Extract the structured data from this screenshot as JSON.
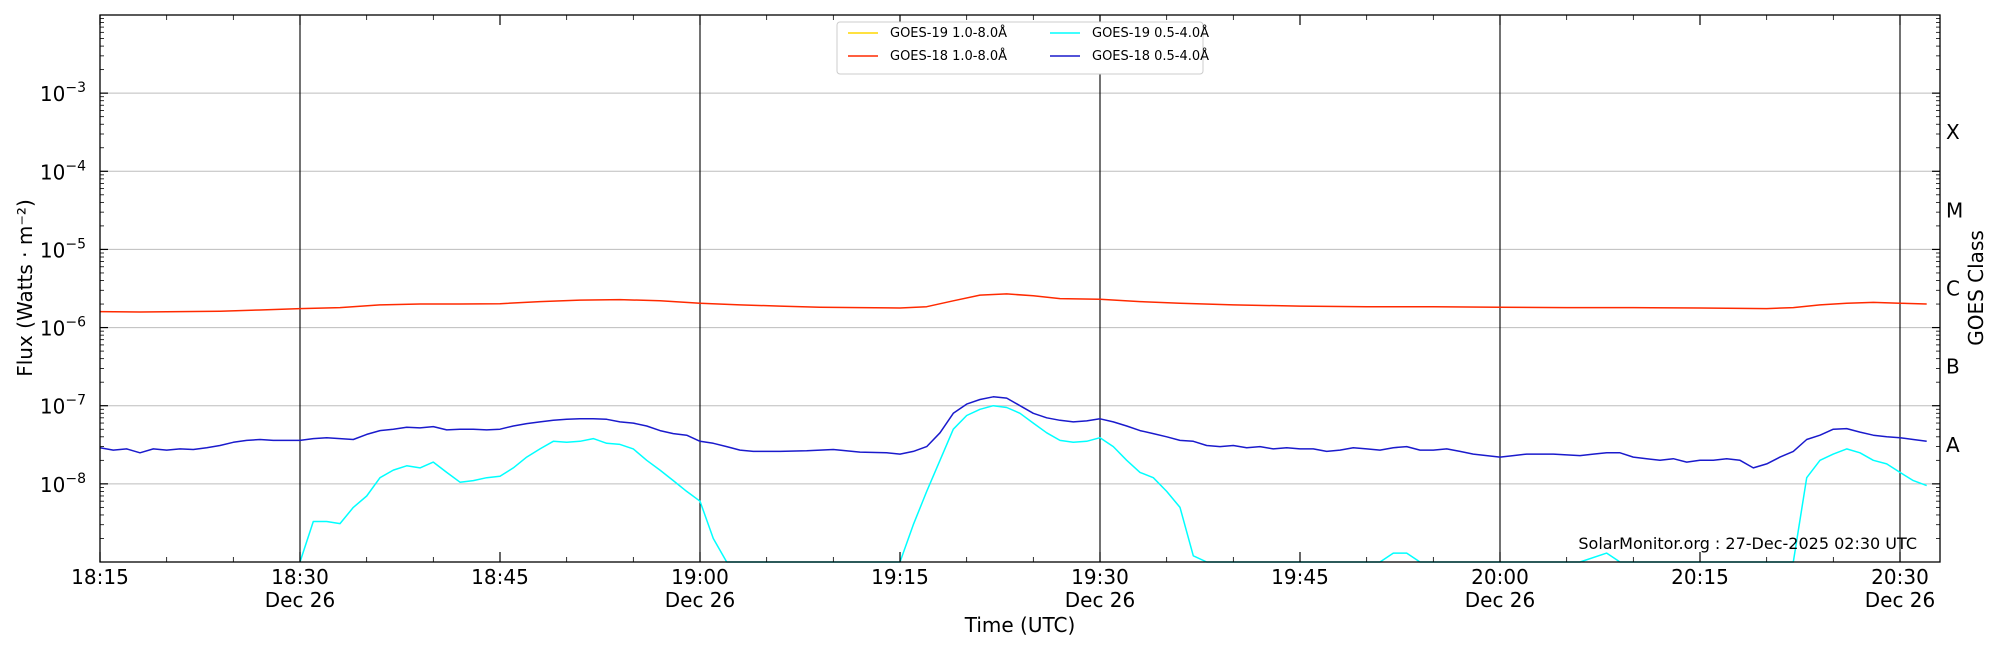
{
  "chart_data": {
    "type": "line",
    "xlabel": "Time (UTC)",
    "ylabel": "Flux (Watts · m⁻²)",
    "ylabel_right": "GOES Class",
    "y_scale": "log",
    "ylim": [
      1e-09,
      0.01
    ],
    "x_range": [
      "18:15",
      "20:33"
    ],
    "y_ticks": [
      {
        "value": 1e-08,
        "base": "10",
        "exp": "−8"
      },
      {
        "value": 1e-07,
        "base": "10",
        "exp": "−7"
      },
      {
        "value": 1e-06,
        "base": "10",
        "exp": "−6"
      },
      {
        "value": 1e-05,
        "base": "10",
        "exp": "−5"
      },
      {
        "value": 0.0001,
        "base": "10",
        "exp": "−4"
      },
      {
        "value": 0.001,
        "base": "10",
        "exp": "−3"
      }
    ],
    "x_ticks": [
      {
        "time": "18:15",
        "label": "18:15",
        "date": ""
      },
      {
        "time": "18:30",
        "label": "18:30",
        "date": "Dec 26"
      },
      {
        "time": "18:45",
        "label": "18:45",
        "date": ""
      },
      {
        "time": "19:00",
        "label": "19:00",
        "date": "Dec 26"
      },
      {
        "time": "19:15",
        "label": "19:15",
        "date": ""
      },
      {
        "time": "19:30",
        "label": "19:30",
        "date": "Dec 26"
      },
      {
        "time": "19:45",
        "label": "19:45",
        "date": ""
      },
      {
        "time": "20:00",
        "label": "20:00",
        "date": "Dec 26"
      },
      {
        "time": "20:15",
        "label": "20:15",
        "date": ""
      },
      {
        "time": "20:30",
        "label": "20:30",
        "date": "Dec 26"
      }
    ],
    "vertical_lines": [
      "18:30",
      "19:00",
      "19:30",
      "20:00",
      "20:30"
    ],
    "goes_classes": [
      {
        "label": "A",
        "value": 3.16e-08
      },
      {
        "label": "B",
        "value": 3.16e-07
      },
      {
        "label": "C",
        "value": 3.16e-06
      },
      {
        "label": "M",
        "value": 3.16e-05
      },
      {
        "label": "X",
        "value": 0.000316
      }
    ],
    "grid": true,
    "legend_position": "top-center",
    "watermark": "SolarMonitor.org : 27-Dec-2025 02:30 UTC",
    "series": [
      {
        "name": "GOES-19 1.0-8.0Å",
        "color": "#ffd700",
        "draw": false,
        "points": []
      },
      {
        "name": "GOES-18 1.0-8.0Å",
        "color": "#ff2a00",
        "points": [
          [
            "18:15",
            1.6e-06
          ],
          [
            "18:18",
            1.58e-06
          ],
          [
            "18:21",
            1.6e-06
          ],
          [
            "18:24",
            1.62e-06
          ],
          [
            "18:27",
            1.68e-06
          ],
          [
            "18:30",
            1.75e-06
          ],
          [
            "18:33",
            1.8e-06
          ],
          [
            "18:36",
            1.95e-06
          ],
          [
            "18:39",
            2e-06
          ],
          [
            "18:42",
            2e-06
          ],
          [
            "18:45",
            2.02e-06
          ],
          [
            "18:48",
            2.15e-06
          ],
          [
            "18:51",
            2.25e-06
          ],
          [
            "18:54",
            2.28e-06
          ],
          [
            "18:57",
            2.2e-06
          ],
          [
            "19:00",
            2.05e-06
          ],
          [
            "19:03",
            1.95e-06
          ],
          [
            "19:06",
            1.88e-06
          ],
          [
            "19:09",
            1.82e-06
          ],
          [
            "19:12",
            1.8e-06
          ],
          [
            "19:15",
            1.78e-06
          ],
          [
            "19:17",
            1.85e-06
          ],
          [
            "19:19",
            2.2e-06
          ],
          [
            "19:21",
            2.6e-06
          ],
          [
            "19:23",
            2.7e-06
          ],
          [
            "19:25",
            2.55e-06
          ],
          [
            "19:27",
            2.35e-06
          ],
          [
            "19:30",
            2.3e-06
          ],
          [
            "19:33",
            2.15e-06
          ],
          [
            "19:36",
            2.05e-06
          ],
          [
            "19:40",
            1.95e-06
          ],
          [
            "19:45",
            1.88e-06
          ],
          [
            "19:50",
            1.85e-06
          ],
          [
            "19:55",
            1.85e-06
          ],
          [
            "20:00",
            1.82e-06
          ],
          [
            "20:05",
            1.8e-06
          ],
          [
            "20:10",
            1.8e-06
          ],
          [
            "20:15",
            1.78e-06
          ],
          [
            "20:20",
            1.75e-06
          ],
          [
            "20:22",
            1.8e-06
          ],
          [
            "20:24",
            1.95e-06
          ],
          [
            "20:26",
            2.05e-06
          ],
          [
            "20:28",
            2.1e-06
          ],
          [
            "20:30",
            2.05e-06
          ],
          [
            "20:32",
            2e-06
          ]
        ]
      },
      {
        "name": "GOES-19 0.5-4.0Å",
        "color": "#00ffff",
        "points": [
          [
            "18:30",
            1e-09
          ],
          [
            "18:31",
            3.3e-09
          ],
          [
            "18:32",
            3.3e-09
          ],
          [
            "18:33",
            3.1e-09
          ],
          [
            "18:34",
            5e-09
          ],
          [
            "18:35",
            7e-09
          ],
          [
            "18:36",
            1.2e-08
          ],
          [
            "18:37",
            1.5e-08
          ],
          [
            "18:38",
            1.7e-08
          ],
          [
            "18:39",
            1.6e-08
          ],
          [
            "18:40",
            1.9e-08
          ],
          [
            "18:41",
            1.4e-08
          ],
          [
            "18:42",
            1.05e-08
          ],
          [
            "18:43",
            1.1e-08
          ],
          [
            "18:44",
            1.2e-08
          ],
          [
            "18:45",
            1.25e-08
          ],
          [
            "18:46",
            1.6e-08
          ],
          [
            "18:47",
            2.2e-08
          ],
          [
            "18:48",
            2.8e-08
          ],
          [
            "18:49",
            3.5e-08
          ],
          [
            "18:50",
            3.4e-08
          ],
          [
            "18:51",
            3.5e-08
          ],
          [
            "18:52",
            3.8e-08
          ],
          [
            "18:53",
            3.3e-08
          ],
          [
            "18:54",
            3.2e-08
          ],
          [
            "18:55",
            2.8e-08
          ],
          [
            "18:56",
            2e-08
          ],
          [
            "18:57",
            1.5e-08
          ],
          [
            "18:58",
            1.1e-08
          ],
          [
            "18:59",
            8e-09
          ],
          [
            "19:00",
            6e-09
          ],
          [
            "19:01",
            2e-09
          ],
          [
            "19:02",
            1e-09
          ],
          [
            "19:15",
            1e-09
          ],
          [
            "19:16",
            3e-09
          ],
          [
            "19:17",
            8e-09
          ],
          [
            "19:18",
            2e-08
          ],
          [
            "19:19",
            5e-08
          ],
          [
            "19:20",
            7.5e-08
          ],
          [
            "19:21",
            9e-08
          ],
          [
            "19:22",
            1e-07
          ],
          [
            "19:23",
            9.5e-08
          ],
          [
            "19:24",
            8e-08
          ],
          [
            "19:25",
            6e-08
          ],
          [
            "19:26",
            4.5e-08
          ],
          [
            "19:27",
            3.6e-08
          ],
          [
            "19:28",
            3.4e-08
          ],
          [
            "19:29",
            3.5e-08
          ],
          [
            "19:30",
            3.9e-08
          ],
          [
            "19:31",
            3e-08
          ],
          [
            "19:32",
            2e-08
          ],
          [
            "19:33",
            1.4e-08
          ],
          [
            "19:34",
            1.2e-08
          ],
          [
            "19:35",
            8e-09
          ],
          [
            "19:36",
            5e-09
          ],
          [
            "19:37",
            1.2e-09
          ],
          [
            "19:38",
            1e-09
          ],
          [
            "19:51",
            1e-09
          ],
          [
            "19:52",
            1.3e-09
          ],
          [
            "19:53",
            1.3e-09
          ],
          [
            "19:54",
            1e-09
          ],
          [
            "20:06",
            1e-09
          ],
          [
            "20:08",
            1.3e-09
          ],
          [
            "20:09",
            1e-09
          ],
          [
            "20:22",
            1e-09
          ],
          [
            "20:23",
            1.2e-08
          ],
          [
            "20:24",
            2e-08
          ],
          [
            "20:25",
            2.4e-08
          ],
          [
            "20:26",
            2.8e-08
          ],
          [
            "20:27",
            2.5e-08
          ],
          [
            "20:28",
            2e-08
          ],
          [
            "20:29",
            1.8e-08
          ],
          [
            "20:30",
            1.4e-08
          ],
          [
            "20:31",
            1.1e-08
          ],
          [
            "20:32",
            9.5e-09
          ]
        ]
      },
      {
        "name": "GOES-18 0.5-4.0Å",
        "color": "#1a1acc",
        "points": [
          [
            "18:15",
            2.9e-08
          ],
          [
            "18:16",
            2.7e-08
          ],
          [
            "18:17",
            2.8e-08
          ],
          [
            "18:18",
            2.5e-08
          ],
          [
            "18:19",
            2.8e-08
          ],
          [
            "18:20",
            2.7e-08
          ],
          [
            "18:21",
            2.8e-08
          ],
          [
            "18:22",
            2.75e-08
          ],
          [
            "18:23",
            2.9e-08
          ],
          [
            "18:24",
            3.1e-08
          ],
          [
            "18:25",
            3.4e-08
          ],
          [
            "18:26",
            3.6e-08
          ],
          [
            "18:27",
            3.7e-08
          ],
          [
            "18:28",
            3.6e-08
          ],
          [
            "18:30",
            3.6e-08
          ],
          [
            "18:31",
            3.8e-08
          ],
          [
            "18:32",
            3.9e-08
          ],
          [
            "18:33",
            3.8e-08
          ],
          [
            "18:34",
            3.7e-08
          ],
          [
            "18:35",
            4.3e-08
          ],
          [
            "18:36",
            4.8e-08
          ],
          [
            "18:37",
            5e-08
          ],
          [
            "18:38",
            5.3e-08
          ],
          [
            "18:39",
            5.2e-08
          ],
          [
            "18:40",
            5.4e-08
          ],
          [
            "18:41",
            4.9e-08
          ],
          [
            "18:42",
            5e-08
          ],
          [
            "18:43",
            5e-08
          ],
          [
            "18:44",
            4.9e-08
          ],
          [
            "18:45",
            5e-08
          ],
          [
            "18:46",
            5.5e-08
          ],
          [
            "18:47",
            5.9e-08
          ],
          [
            "18:48",
            6.2e-08
          ],
          [
            "18:49",
            6.5e-08
          ],
          [
            "18:50",
            6.7e-08
          ],
          [
            "18:51",
            6.8e-08
          ],
          [
            "18:52",
            6.8e-08
          ],
          [
            "18:53",
            6.7e-08
          ],
          [
            "18:54",
            6.2e-08
          ],
          [
            "18:55",
            6e-08
          ],
          [
            "18:56",
            5.5e-08
          ],
          [
            "18:57",
            4.8e-08
          ],
          [
            "18:58",
            4.4e-08
          ],
          [
            "18:59",
            4.2e-08
          ],
          [
            "19:00",
            3.5e-08
          ],
          [
            "19:01",
            3.3e-08
          ],
          [
            "19:02",
            3e-08
          ],
          [
            "19:03",
            2.7e-08
          ],
          [
            "19:04",
            2.6e-08
          ],
          [
            "19:06",
            2.6e-08
          ],
          [
            "19:08",
            2.65e-08
          ],
          [
            "19:10",
            2.75e-08
          ],
          [
            "19:12",
            2.55e-08
          ],
          [
            "19:14",
            2.5e-08
          ],
          [
            "19:15",
            2.4e-08
          ],
          [
            "19:16",
            2.6e-08
          ],
          [
            "19:17",
            3e-08
          ],
          [
            "19:18",
            4.5e-08
          ],
          [
            "19:19",
            8e-08
          ],
          [
            "19:20",
            1.05e-07
          ],
          [
            "19:21",
            1.2e-07
          ],
          [
            "19:22",
            1.3e-07
          ],
          [
            "19:23",
            1.25e-07
          ],
          [
            "19:24",
            1e-07
          ],
          [
            "19:25",
            8e-08
          ],
          [
            "19:26",
            7e-08
          ],
          [
            "19:27",
            6.5e-08
          ],
          [
            "19:28",
            6.2e-08
          ],
          [
            "19:29",
            6.4e-08
          ],
          [
            "19:30",
            6.8e-08
          ],
          [
            "19:31",
            6.2e-08
          ],
          [
            "19:32",
            5.5e-08
          ],
          [
            "19:33",
            4.8e-08
          ],
          [
            "19:34",
            4.4e-08
          ],
          [
            "19:35",
            4e-08
          ],
          [
            "19:36",
            3.6e-08
          ],
          [
            "19:37",
            3.5e-08
          ],
          [
            "19:38",
            3.1e-08
          ],
          [
            "19:39",
            3e-08
          ],
          [
            "19:40",
            3.1e-08
          ],
          [
            "19:41",
            2.9e-08
          ],
          [
            "19:42",
            3e-08
          ],
          [
            "19:43",
            2.8e-08
          ],
          [
            "19:44",
            2.9e-08
          ],
          [
            "19:45",
            2.8e-08
          ],
          [
            "19:46",
            2.8e-08
          ],
          [
            "19:47",
            2.6e-08
          ],
          [
            "19:48",
            2.7e-08
          ],
          [
            "19:49",
            2.9e-08
          ],
          [
            "19:50",
            2.8e-08
          ],
          [
            "19:51",
            2.7e-08
          ],
          [
            "19:52",
            2.9e-08
          ],
          [
            "19:53",
            3e-08
          ],
          [
            "19:54",
            2.7e-08
          ],
          [
            "19:55",
            2.7e-08
          ],
          [
            "19:56",
            2.8e-08
          ],
          [
            "19:57",
            2.6e-08
          ],
          [
            "19:58",
            2.4e-08
          ],
          [
            "19:59",
            2.3e-08
          ],
          [
            "20:00",
            2.2e-08
          ],
          [
            "20:01",
            2.3e-08
          ],
          [
            "20:02",
            2.4e-08
          ],
          [
            "20:04",
            2.4e-08
          ],
          [
            "20:06",
            2.3e-08
          ],
          [
            "20:07",
            2.4e-08
          ],
          [
            "20:08",
            2.5e-08
          ],
          [
            "20:09",
            2.5e-08
          ],
          [
            "20:10",
            2.2e-08
          ],
          [
            "20:11",
            2.1e-08
          ],
          [
            "20:12",
            2e-08
          ],
          [
            "20:13",
            2.1e-08
          ],
          [
            "20:14",
            1.9e-08
          ],
          [
            "20:15",
            2e-08
          ],
          [
            "20:16",
            2e-08
          ],
          [
            "20:17",
            2.1e-08
          ],
          [
            "20:18",
            2e-08
          ],
          [
            "20:19",
            1.6e-08
          ],
          [
            "20:20",
            1.8e-08
          ],
          [
            "20:21",
            2.2e-08
          ],
          [
            "20:22",
            2.6e-08
          ],
          [
            "20:23",
            3.7e-08
          ],
          [
            "20:24",
            4.2e-08
          ],
          [
            "20:25",
            5e-08
          ],
          [
            "20:26",
            5.1e-08
          ],
          [
            "20:27",
            4.6e-08
          ],
          [
            "20:28",
            4.2e-08
          ],
          [
            "20:29",
            4e-08
          ],
          [
            "20:30",
            3.9e-08
          ],
          [
            "20:31",
            3.7e-08
          ],
          [
            "20:32",
            3.5e-08
          ]
        ]
      }
    ]
  }
}
